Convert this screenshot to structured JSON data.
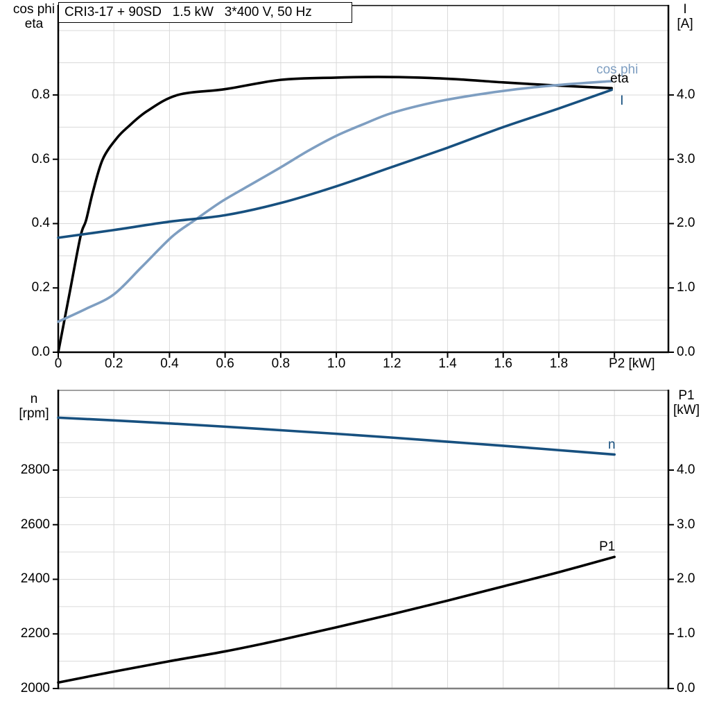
{
  "title_box": {
    "text": "CRI3-17 + 90SD   1.5 kW   3*400 V, 50 Hz"
  },
  "colors": {
    "black": "#000000",
    "dark_blue": "#17507F",
    "light_blue": "#7E9EC1",
    "grid": "#D9D9D9",
    "frame_gray": "#808080",
    "background": "#FFFFFF"
  },
  "chart_data": [
    {
      "type": "line",
      "xlabel": "P2 [kW]",
      "axis_label_left": [
        "cos phi",
        "eta"
      ],
      "axis_label_right": [
        "I",
        "[A]"
      ],
      "xlim": [
        0,
        2.194
      ],
      "ylim_left": [
        0,
        1.078
      ],
      "ylim_right": [
        0,
        5.39
      ],
      "grid": "on",
      "legend_position": "curve-end-labels",
      "xticks": {
        "values": [
          0,
          0.2,
          0.4,
          0.6,
          0.8,
          1.0,
          1.2,
          1.4,
          1.6,
          1.8,
          2.0
        ],
        "labels": [
          "0",
          "0.2",
          "0.4",
          "0.6",
          "0.8",
          "1.0",
          "1.2",
          "1.4",
          "1.6",
          "1.8",
          ""
        ]
      },
      "yticks_left": {
        "values": [
          0,
          0.2,
          0.4,
          0.6,
          0.8
        ],
        "labels": [
          "0.0",
          "0.2",
          "0.4",
          "0.6",
          "0.8"
        ]
      },
      "yticks_right": {
        "values": [
          0,
          1,
          2,
          3,
          4
        ],
        "labels": [
          "0.0",
          "1.0",
          "2.0",
          "3.0",
          "4.0"
        ]
      },
      "grid_x": [
        0.2,
        0.4,
        0.6,
        0.8,
        1.0,
        1.2,
        1.4,
        1.6,
        1.8,
        2.0
      ],
      "grid_y": {
        "axis": "left",
        "values": [
          0.1,
          0.2,
          0.3,
          0.4,
          0.5,
          0.6,
          0.7,
          0.8,
          0.9,
          1.0
        ]
      },
      "frame": {
        "top": "black",
        "bottom": "black",
        "left": "black",
        "right": "black"
      },
      "series": [
        {
          "name": "eta",
          "axis": "left",
          "color_key": "black",
          "label_anchor": {
            "x": 1.985,
            "y": 0.849
          },
          "points": [
            [
              0,
              0
            ],
            [
              0.04,
              0.18
            ],
            [
              0.08,
              0.36
            ],
            [
              0.1,
              0.41
            ],
            [
              0.125,
              0.5
            ],
            [
              0.16,
              0.6
            ],
            [
              0.21,
              0.665
            ],
            [
              0.25,
              0.7
            ],
            [
              0.32,
              0.75
            ],
            [
              0.43,
              0.8
            ],
            [
              0.6,
              0.818
            ],
            [
              0.8,
              0.847
            ],
            [
              1.0,
              0.854
            ],
            [
              1.15,
              0.856
            ],
            [
              1.3,
              0.854
            ],
            [
              1.45,
              0.848
            ],
            [
              1.6,
              0.839
            ],
            [
              1.8,
              0.829
            ],
            [
              1.99,
              0.821
            ]
          ]
        },
        {
          "name": "cos phi",
          "axis": "left",
          "color_key": "light_blue",
          "label_anchor": {
            "x": 1.935,
            "y": 0.878
          },
          "points": [
            [
              0,
              0.095
            ],
            [
              0.1,
              0.135
            ],
            [
              0.2,
              0.18
            ],
            [
              0.3,
              0.265
            ],
            [
              0.41,
              0.36
            ],
            [
              0.49,
              0.41
            ],
            [
              0.59,
              0.47
            ],
            [
              0.7,
              0.525
            ],
            [
              0.8,
              0.575
            ],
            [
              0.9,
              0.627
            ],
            [
              1.0,
              0.673
            ],
            [
              1.1,
              0.71
            ],
            [
              1.2,
              0.744
            ],
            [
              1.35,
              0.777
            ],
            [
              1.5,
              0.8
            ],
            [
              1.65,
              0.818
            ],
            [
              1.8,
              0.831
            ],
            [
              1.99,
              0.843
            ]
          ]
        },
        {
          "name": "I",
          "axis": "right",
          "color_key": "dark_blue",
          "label_anchor": {
            "x": 2.02,
            "y": 3.9
          },
          "points": [
            [
              0,
              1.78
            ],
            [
              0.2,
              1.9
            ],
            [
              0.4,
              2.03
            ],
            [
              0.6,
              2.13
            ],
            [
              0.8,
              2.32
            ],
            [
              1.0,
              2.58
            ],
            [
              1.2,
              2.88
            ],
            [
              1.4,
              3.18
            ],
            [
              1.6,
              3.5
            ],
            [
              1.8,
              3.79
            ],
            [
              1.99,
              4.08
            ]
          ]
        }
      ]
    },
    {
      "type": "line",
      "xlabel": "",
      "axis_label_left": [
        "n",
        "[rpm]"
      ],
      "axis_label_right": [
        "P1",
        "[kW]"
      ],
      "xlim": [
        0,
        2.194
      ],
      "ylim_left": [
        2000,
        3092
      ],
      "ylim_right": [
        0,
        5.46
      ],
      "grid": "on",
      "legend_position": "curve-end-labels",
      "xticks": {
        "values": [],
        "labels": []
      },
      "yticks_left": {
        "values": [
          2000,
          2200,
          2400,
          2600,
          2800
        ],
        "labels": [
          "2000",
          "2200",
          "2400",
          "2600",
          "2800"
        ]
      },
      "yticks_right": {
        "values": [
          0,
          1,
          2,
          3,
          4
        ],
        "labels": [
          "0.0",
          "1.0",
          "2.0",
          "3.0",
          "4.0"
        ]
      },
      "grid_x": [
        0.2,
        0.4,
        0.6,
        0.8,
        1.0,
        1.2,
        1.4,
        1.6,
        1.8,
        2.0
      ],
      "grid_y": {
        "axis": "right",
        "values": [
          0.5,
          1.0,
          1.5,
          2.0,
          2.5,
          3.0,
          3.5,
          4.0,
          4.5,
          5.0
        ]
      },
      "frame": {
        "top": "frame_gray",
        "bottom": "frame_gray",
        "left": "black",
        "right": "black"
      },
      "series": [
        {
          "name": "n",
          "axis": "left",
          "color_key": "dark_blue",
          "label_anchor": {
            "x": 1.977,
            "y": 2892
          },
          "points": [
            [
              0,
              2992
            ],
            [
              0.2,
              2982
            ],
            [
              0.4,
              2971
            ],
            [
              0.6,
              2959
            ],
            [
              0.8,
              2946
            ],
            [
              1.0,
              2933
            ],
            [
              1.2,
              2919
            ],
            [
              1.4,
              2904
            ],
            [
              1.6,
              2889
            ],
            [
              1.8,
              2873
            ],
            [
              2.0,
              2857
            ]
          ]
        },
        {
          "name": "P1",
          "axis": "right",
          "color_key": "black",
          "label_anchor": {
            "x": 1.945,
            "y": 2.59
          },
          "points": [
            [
              0,
              0.11
            ],
            [
              0.2,
              0.31
            ],
            [
              0.4,
              0.5
            ],
            [
              0.6,
              0.68
            ],
            [
              0.8,
              0.89
            ],
            [
              1.0,
              1.12
            ],
            [
              1.2,
              1.36
            ],
            [
              1.4,
              1.61
            ],
            [
              1.6,
              1.87
            ],
            [
              1.8,
              2.13
            ],
            [
              2.0,
              2.41
            ]
          ]
        }
      ]
    }
  ]
}
